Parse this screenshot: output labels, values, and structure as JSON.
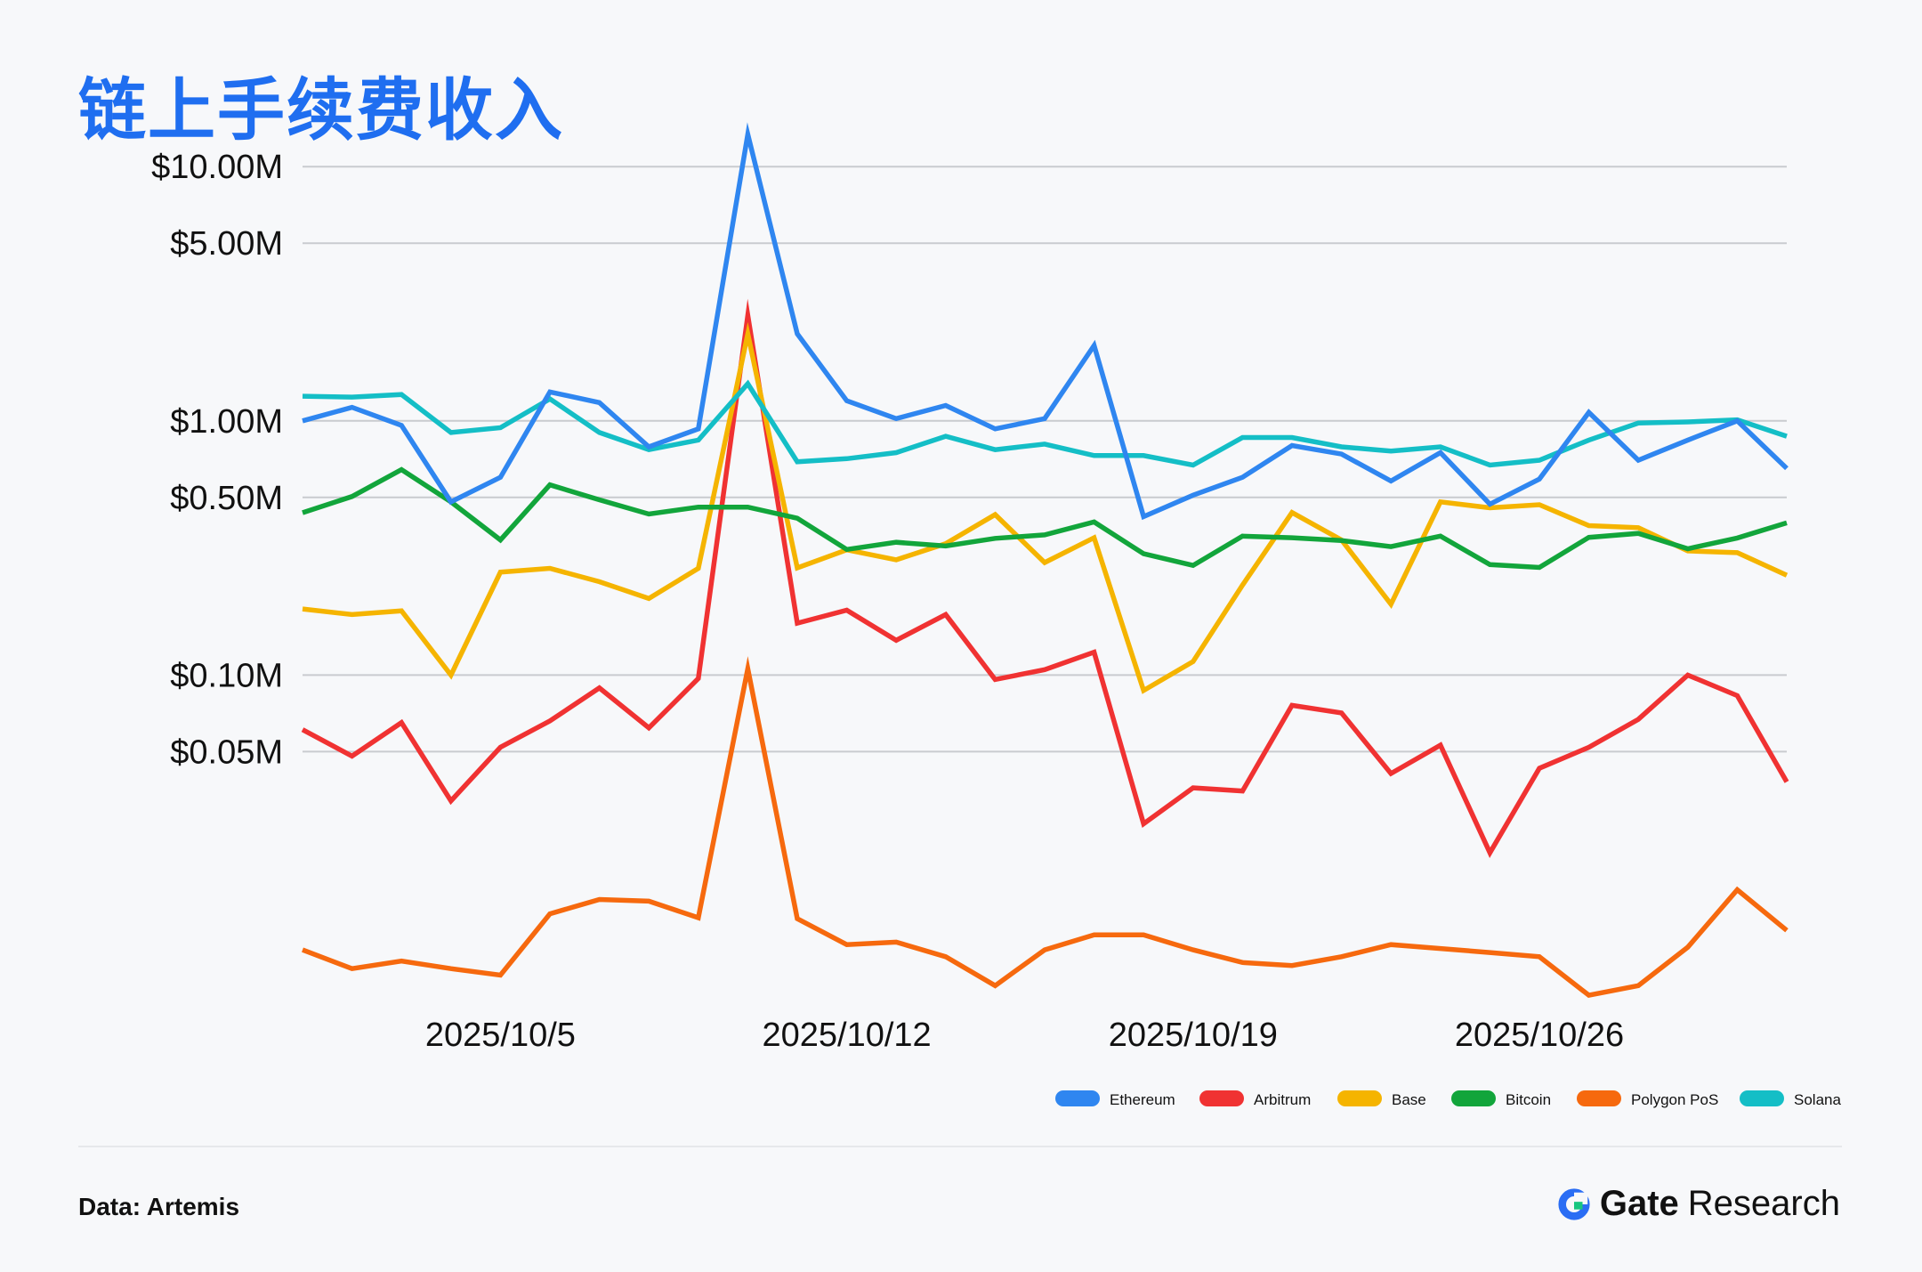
{
  "title": "链上手续费收入",
  "source": "Data: Artemis",
  "brand": {
    "name": "Gate",
    "suffix": "Research"
  },
  "chart_data": {
    "type": "line",
    "title": "链上手续费收入",
    "yscale": "log",
    "ylim": [
      0.0048,
      13.5
    ],
    "y_ticks": [
      {
        "value": 10,
        "label": "$10.00M"
      },
      {
        "value": 5,
        "label": "$5.00M"
      },
      {
        "value": 1,
        "label": "$1.00M"
      },
      {
        "value": 0.5,
        "label": "$0.50M"
      },
      {
        "value": 0.1,
        "label": "$0.10M"
      },
      {
        "value": 0.05,
        "label": "$0.05M"
      }
    ],
    "x_ticks": [
      {
        "index": 4,
        "label": "2025/10/5"
      },
      {
        "index": 11,
        "label": "2025/10/12"
      },
      {
        "index": 18,
        "label": "2025/10/19"
      },
      {
        "index": 25,
        "label": "2025/10/26"
      }
    ],
    "x": [
      "2025/10/1",
      "2025/10/2",
      "2025/10/3",
      "2025/10/4",
      "2025/10/5",
      "2025/10/6",
      "2025/10/7",
      "2025/10/8",
      "2025/10/9",
      "2025/10/10",
      "2025/10/11",
      "2025/10/12",
      "2025/10/13",
      "2025/10/14",
      "2025/10/15",
      "2025/10/16",
      "2025/10/17",
      "2025/10/18",
      "2025/10/19",
      "2025/10/20",
      "2025/10/21",
      "2025/10/22",
      "2025/10/23",
      "2025/10/24",
      "2025/10/25",
      "2025/10/26",
      "2025/10/27",
      "2025/10/28",
      "2025/10/29",
      "2025/10/30",
      "2025/10/31"
    ],
    "grid": true,
    "legend_position": "bottom-right",
    "series": [
      {
        "name": "Ethereum",
        "color": "#2f86f0",
        "values": [
          1.0,
          1.13,
          0.96,
          0.48,
          0.6,
          1.3,
          1.18,
          0.79,
          0.93,
          13.4,
          2.2,
          1.2,
          1.02,
          1.15,
          0.93,
          1.02,
          1.98,
          0.42,
          0.51,
          0.6,
          0.8,
          0.74,
          0.58,
          0.75,
          0.47,
          0.59,
          1.08,
          0.7,
          0.84,
          1.0,
          0.65
        ]
      },
      {
        "name": "Arbitrum",
        "color": "#f03232",
        "values": [
          0.061,
          0.048,
          0.065,
          0.032,
          0.052,
          0.066,
          0.089,
          0.062,
          0.097,
          2.6,
          0.16,
          0.18,
          0.137,
          0.173,
          0.096,
          0.105,
          0.123,
          0.026,
          0.036,
          0.035,
          0.076,
          0.071,
          0.041,
          0.053,
          0.02,
          0.043,
          0.052,
          0.067,
          0.1,
          0.083,
          0.038
        ]
      },
      {
        "name": "Base",
        "color": "#f5b400",
        "values": [
          0.182,
          0.173,
          0.179,
          0.1,
          0.254,
          0.263,
          0.233,
          0.2,
          0.263,
          2.2,
          0.264,
          0.311,
          0.284,
          0.329,
          0.428,
          0.277,
          0.347,
          0.087,
          0.113,
          0.226,
          0.436,
          0.34,
          0.19,
          0.48,
          0.455,
          0.468,
          0.387,
          0.38,
          0.308,
          0.303,
          0.247
        ]
      },
      {
        "name": "Bitcoin",
        "color": "#12a53b",
        "values": [
          0.435,
          0.504,
          0.643,
          0.48,
          0.34,
          0.56,
          0.489,
          0.43,
          0.458,
          0.458,
          0.414,
          0.312,
          0.333,
          0.322,
          0.345,
          0.356,
          0.4,
          0.3,
          0.27,
          0.352,
          0.347,
          0.338,
          0.32,
          0.352,
          0.272,
          0.265,
          0.348,
          0.361,
          0.314,
          0.346,
          0.397
        ]
      },
      {
        "name": "Polygon PoS",
        "color": "#f6690e",
        "values": [
          0.0083,
          0.007,
          0.0075,
          0.007,
          0.0066,
          0.0115,
          0.0131,
          0.0129,
          0.0111,
          0.106,
          0.011,
          0.0087,
          0.0089,
          0.0078,
          0.006,
          0.0083,
          0.0095,
          0.0095,
          0.0083,
          0.0074,
          0.0072,
          0.0078,
          0.0087,
          0.0084,
          0.0081,
          0.0078,
          0.0055,
          0.006,
          0.0085,
          0.0143,
          0.0099
        ]
      },
      {
        "name": "Solana",
        "color": "#14bec6",
        "values": [
          1.25,
          1.24,
          1.27,
          0.9,
          0.94,
          1.22,
          0.9,
          0.77,
          0.84,
          1.4,
          0.69,
          0.71,
          0.75,
          0.87,
          0.77,
          0.81,
          0.73,
          0.73,
          0.67,
          0.86,
          0.86,
          0.79,
          0.76,
          0.79,
          0.67,
          0.7,
          0.84,
          0.98,
          0.99,
          1.01,
          0.87
        ]
      }
    ]
  }
}
